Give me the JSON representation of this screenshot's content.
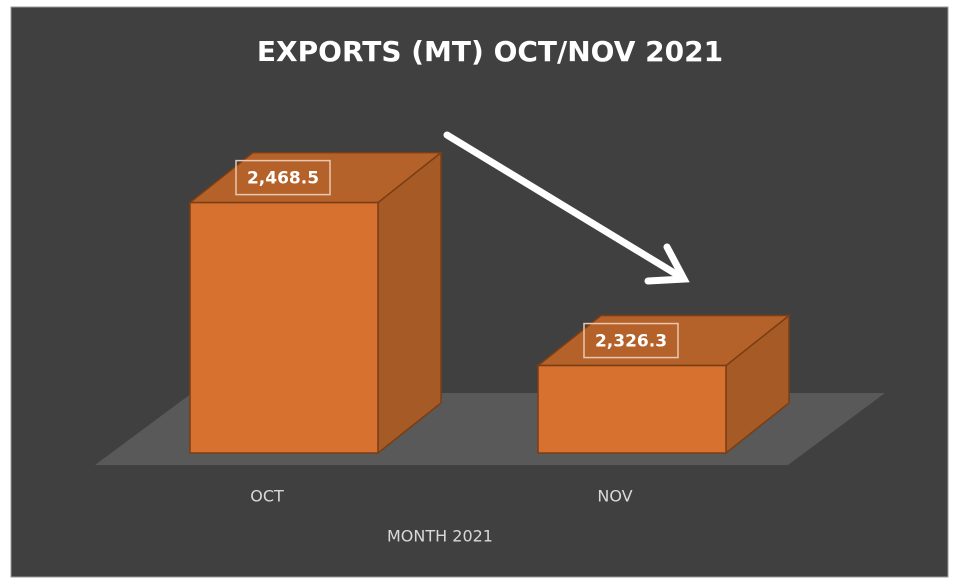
{
  "chart_data": {
    "type": "bar3d",
    "title": "EXPORTS (MT) OCT/NOV 2021",
    "categories": [
      "OCT",
      "NOV"
    ],
    "values": [
      2468.5,
      2326.3
    ],
    "value_labels": [
      "2,468.5",
      "2,326.3"
    ],
    "color": "#d77130",
    "x_label": "MONTH 2021",
    "ylim": [
      2250,
      2500
    ]
  }
}
